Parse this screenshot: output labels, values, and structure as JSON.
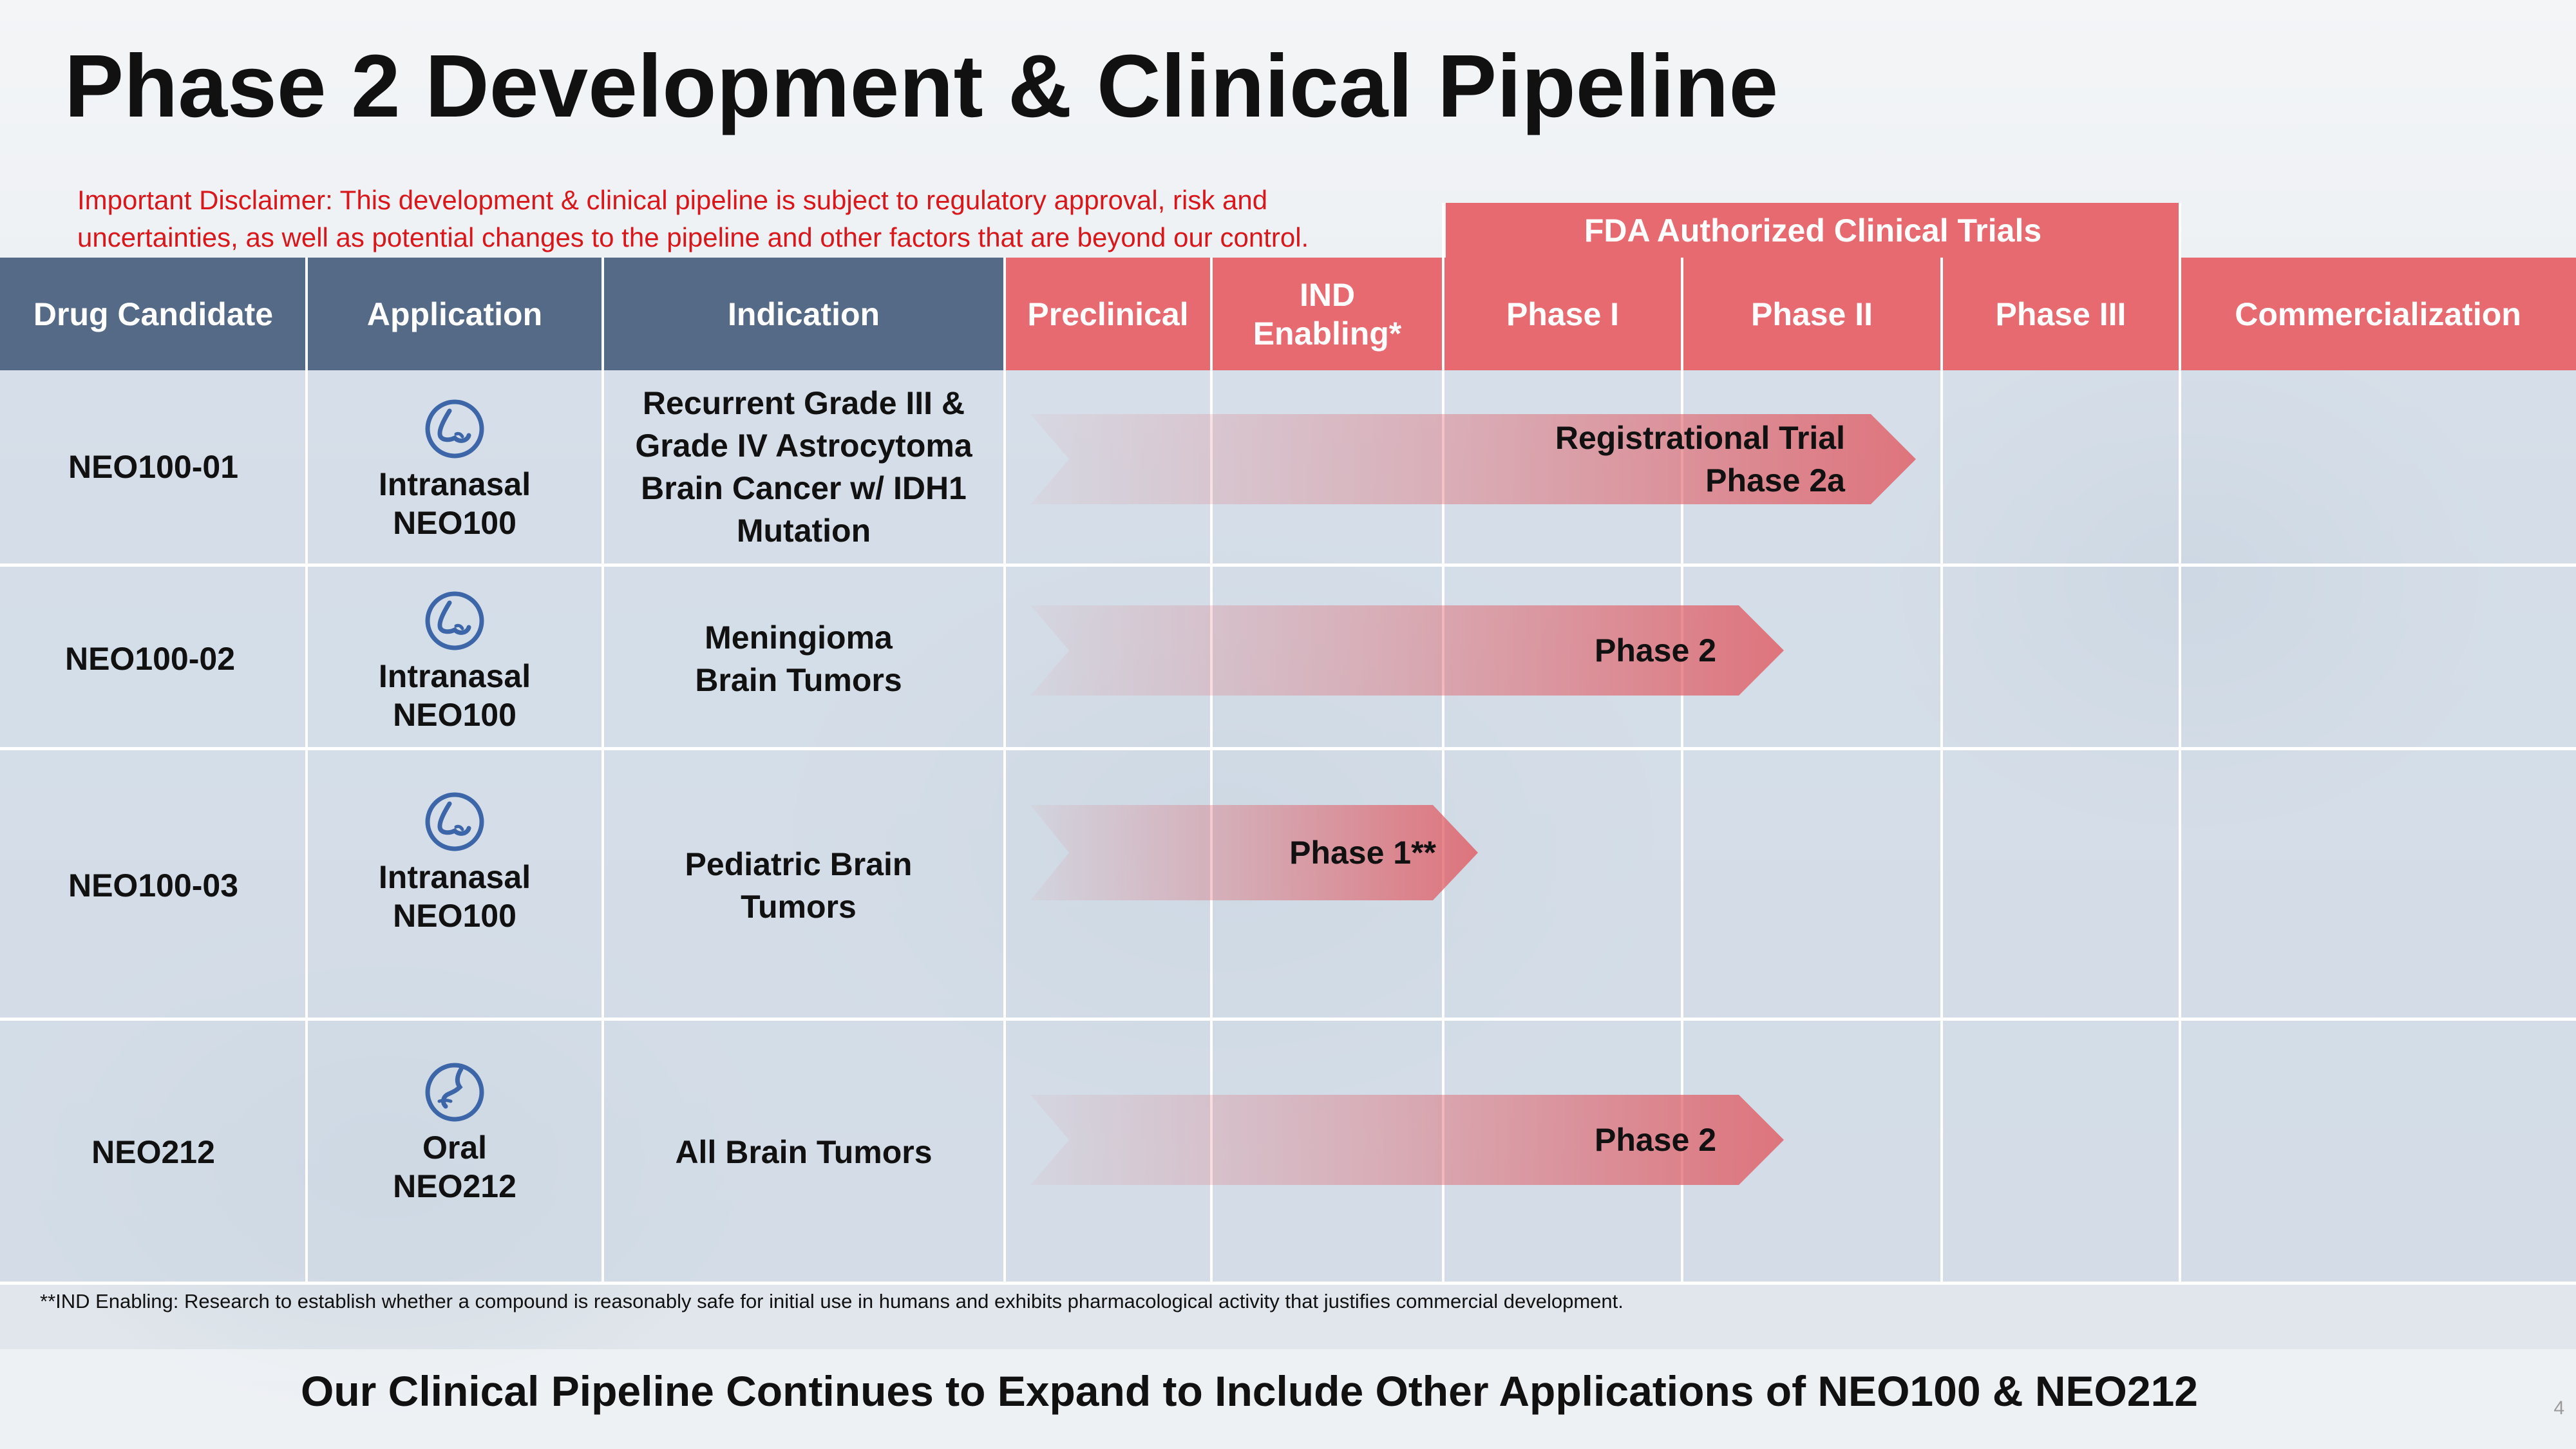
{
  "slide": {
    "title": "Phase 2 Development & Clinical Pipeline",
    "disclaimer": "Important Disclaimer: This development & clinical pipeline is subject to regulatory approval, risk and uncertainties, as well as potential changes to the pipeline and other factors that are beyond our control.",
    "fda_header": "FDA Authorized Clinical Trials",
    "footnote": "**IND Enabling: Research to establish whether a compound is reasonably safe for initial use in humans and exhibits pharmacological activity that justifies commercial development.",
    "tagline": "Our Clinical Pipeline Continues to Expand to Include Other Applications of NEO100 & NEO212",
    "page_number": "4"
  },
  "columns": {
    "drug_candidate": "Drug Candidate",
    "application": "Application",
    "indication": "Indication",
    "preclinical": "Preclinical",
    "ind_enabling": "IND Enabling*",
    "phase1": "Phase I",
    "phase2": "Phase II",
    "phase3": "Phase III",
    "commercialization": "Commercialization"
  },
  "rows": [
    {
      "drug": "NEO100-01",
      "route": "Intranasal",
      "product": "NEO100",
      "icon": "nose-icon",
      "indication": "Recurrent Grade III & Grade IV Astrocytoma Brain Cancer w/ IDH1 Mutation",
      "stage_line1": "Registrational Trial",
      "stage_line2": "Phase 2a",
      "progress_stage": "Phase II"
    },
    {
      "drug": "NEO100-02",
      "route": "Intranasal",
      "product": "NEO100",
      "icon": "nose-icon",
      "indication": "Meningioma Brain Tumors",
      "stage_line1": "Phase 2",
      "progress_stage": "Phase II"
    },
    {
      "drug": "NEO100-03",
      "route": "Intranasal",
      "product": "NEO100",
      "icon": "nose-icon",
      "indication": "Pediatric Brain Tumors",
      "stage_line1": "Phase 1**",
      "progress_stage": "IND Enabling"
    },
    {
      "drug": "NEO212",
      "route": "Oral",
      "product": "NEO212",
      "icon": "mouth-icon",
      "indication": "All Brain Tumors",
      "stage_line1": "Phase 2",
      "progress_stage": "Phase II"
    }
  ],
  "colors": {
    "header_blue": "#546a86",
    "header_red": "#e76a70",
    "disclaimer_red": "#d9171b",
    "icon_blue": "#3d66a8"
  }
}
